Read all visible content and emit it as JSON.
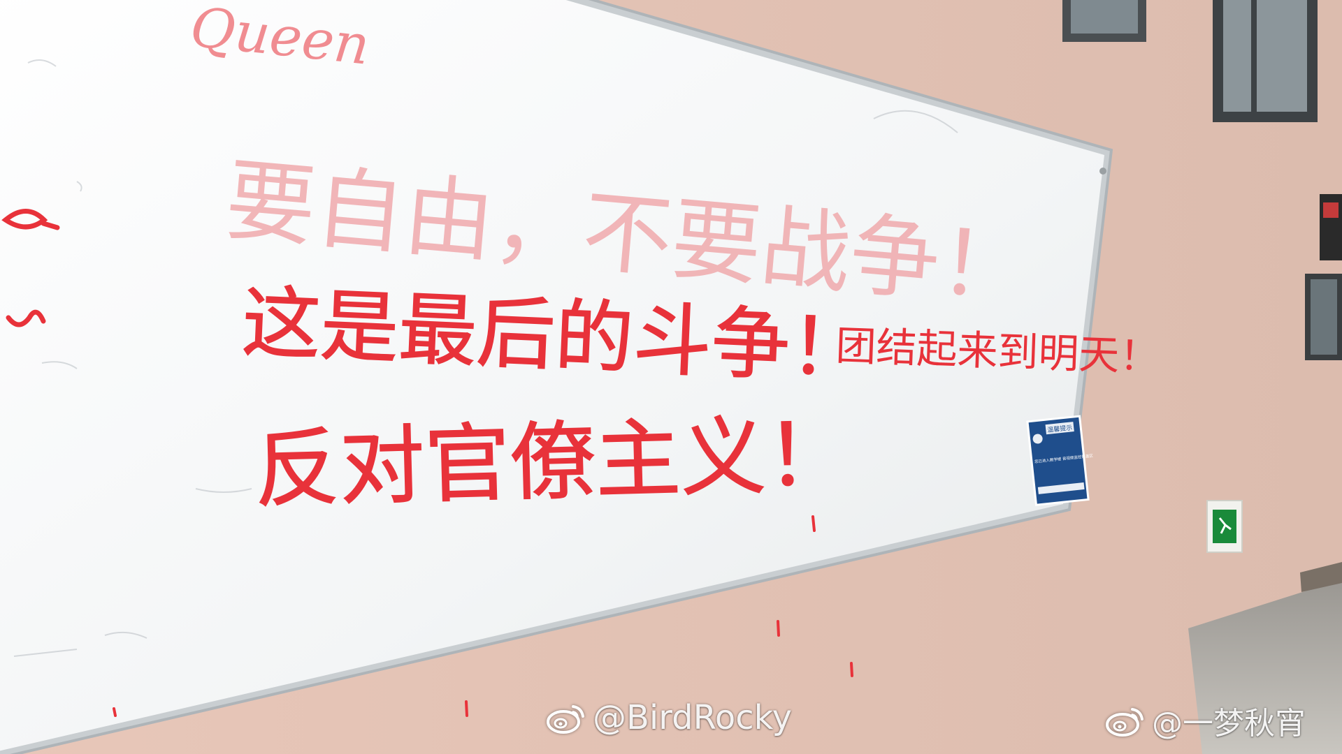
{
  "photo": {
    "colors": {
      "wall": "#e6c6b7",
      "whiteboard": "#f4f6f7",
      "marker_red": "#e8323a",
      "faded_red": "#f0a5a8",
      "sign_blue": "#1f4e8c",
      "exit_green": "#1a8a3a"
    },
    "board_text": {
      "top_signature": "Queen",
      "faded_line": "要自由，不要战争！",
      "line1": "这是最后的斗争！",
      "line1_small": "团结起来到明天！",
      "line2": "反对官僚主义！"
    },
    "sign": {
      "heading": "温馨提示",
      "body": "您已进入教学楼 音视频监控覆盖区"
    }
  },
  "watermarks": [
    {
      "icon": "weibo-icon",
      "handle": "@BirdRocky"
    },
    {
      "icon": "weibo-icon",
      "handle": "@一梦秋宵"
    }
  ]
}
